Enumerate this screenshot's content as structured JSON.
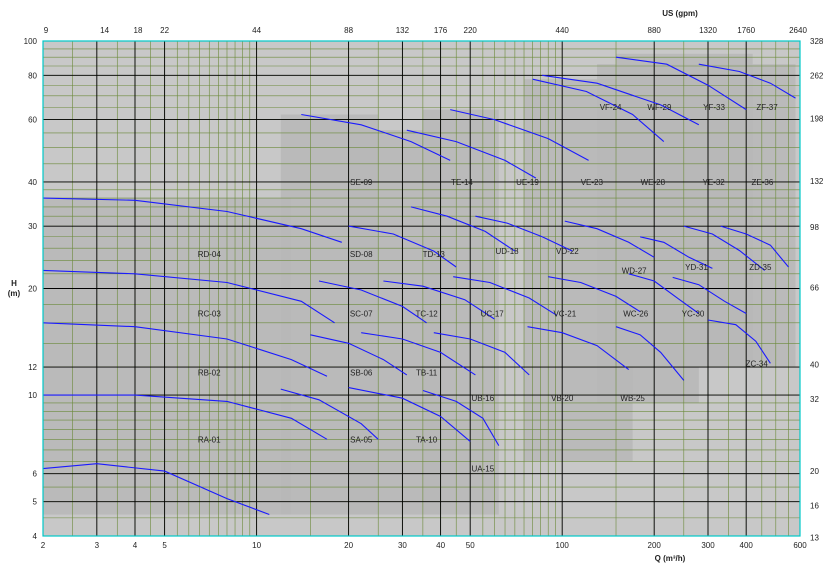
{
  "chart_data": {
    "type": "area",
    "title": "",
    "xlabel": "Q (m³/h)",
    "ylabel": "H\n(m)",
    "top_label": "US (gpm)",
    "x_scale": "log",
    "y_scale": "log",
    "xlim": [
      2,
      600
    ],
    "ylim": [
      4,
      100
    ],
    "x_ticks": [
      "2",
      "3",
      "4",
      "5",
      "10",
      "20",
      "30",
      "40",
      "50",
      "100",
      "200",
      "300",
      "400",
      "600"
    ],
    "y_ticks": [
      "4",
      "5",
      "6",
      "10",
      "12",
      "20",
      "30",
      "40",
      "60",
      "80",
      "100"
    ],
    "top_ticks": [
      "9",
      "14",
      "18",
      "22",
      "44",
      "88",
      "132",
      "176",
      "220",
      "440",
      "880",
      "1320",
      "1760",
      "2640"
    ],
    "right_ticks": [
      "13",
      "16",
      "20",
      "32",
      "40",
      "66",
      "98",
      "132",
      "198",
      "262",
      "328"
    ],
    "grid": true,
    "colors": {
      "background": "#c8c8c8",
      "grid_major": "#000000",
      "grid_minor": "#6b8a3a",
      "frame": "#00c8c8",
      "curve": "#1a1aff",
      "region": "#b8b8b8"
    },
    "curves": [
      {
        "name": "RA",
        "x": [
          2,
          3,
          5,
          8,
          11
        ],
        "y": [
          6.2,
          6.4,
          6.1,
          5.1,
          4.6
        ]
      },
      {
        "name": "RB",
        "x": [
          2,
          4,
          8,
          13,
          17
        ],
        "y": [
          10,
          10,
          9.6,
          8.6,
          7.5
        ]
      },
      {
        "name": "RC",
        "x": [
          2,
          4,
          8,
          13,
          17
        ],
        "y": [
          16,
          15.6,
          14.4,
          12.6,
          11.3
        ]
      },
      {
        "name": "RD",
        "x": [
          2,
          4,
          8,
          14,
          18
        ],
        "y": [
          22.5,
          22,
          20.8,
          18.4,
          16
        ]
      },
      {
        "name": "RE",
        "x": [
          2,
          4,
          8,
          14,
          19
        ],
        "y": [
          36,
          35.5,
          33,
          29.5,
          27
        ]
      },
      {
        "name": "SA",
        "x": [
          12,
          16,
          22,
          25
        ],
        "y": [
          10.4,
          9.7,
          8.3,
          7.5
        ]
      },
      {
        "name": "SB",
        "x": [
          15,
          20,
          26,
          31
        ],
        "y": [
          14.8,
          14,
          12.6,
          11.4
        ]
      },
      {
        "name": "SC",
        "x": [
          16,
          22,
          30,
          36
        ],
        "y": [
          21,
          19.8,
          17.8,
          16
        ]
      },
      {
        "name": "SD",
        "x": [
          20,
          28,
          38,
          45
        ],
        "y": [
          30,
          28.5,
          25.5,
          23
        ]
      },
      {
        "name": "SE",
        "x": [
          14,
          22,
          32,
          43
        ],
        "y": [
          62,
          58,
          52,
          46
        ]
      },
      {
        "name": "TA",
        "x": [
          20,
          30,
          40,
          50
        ],
        "y": [
          10.5,
          9.8,
          8.7,
          7.4
        ]
      },
      {
        "name": "TB",
        "x": [
          22,
          30,
          40,
          52
        ],
        "y": [
          15,
          14.4,
          13.2,
          11.4
        ]
      },
      {
        "name": "TC",
        "x": [
          26,
          35,
          48,
          60
        ],
        "y": [
          21,
          20.3,
          18.6,
          16.4
        ]
      },
      {
        "name": "TD",
        "x": [
          32,
          42,
          56,
          70
        ],
        "y": [
          34,
          32,
          29,
          25.5
        ]
      },
      {
        "name": "TE",
        "x": [
          31,
          45,
          65,
          82
        ],
        "y": [
          56,
          52,
          46,
          41
        ]
      },
      {
        "name": "UA",
        "x": [
          35,
          45,
          55,
          62
        ],
        "y": [
          10.3,
          9.6,
          8.6,
          7.2
        ]
      },
      {
        "name": "UB",
        "x": [
          38,
          50,
          65,
          78
        ],
        "y": [
          15,
          14.4,
          13.2,
          11.4
        ]
      },
      {
        "name": "UC",
        "x": [
          44,
          58,
          78,
          96
        ],
        "y": [
          21.6,
          20.8,
          18.8,
          16.8
        ]
      },
      {
        "name": "UD",
        "x": [
          52,
          66,
          86,
          108
        ],
        "y": [
          32,
          30.6,
          28,
          25.5
        ]
      },
      {
        "name": "UE",
        "x": [
          43,
          60,
          90,
          122
        ],
        "y": [
          64,
          60,
          53,
          46
        ]
      },
      {
        "name": "VB",
        "x": [
          77,
          100,
          130,
          165
        ],
        "y": [
          15.6,
          15,
          13.8,
          11.8
        ]
      },
      {
        "name": "VC",
        "x": [
          90,
          115,
          150,
          180
        ],
        "y": [
          21.6,
          20.8,
          19,
          17.2
        ]
      },
      {
        "name": "VD",
        "x": [
          102,
          130,
          165,
          200
        ],
        "y": [
          31,
          29.5,
          27,
          24.5
        ]
      },
      {
        "name": "VE",
        "x": [
          80,
          120,
          170,
          215
        ],
        "y": [
          78,
          72,
          62,
          52
        ]
      },
      {
        "name": "WB",
        "x": [
          150,
          180,
          210,
          250
        ],
        "y": [
          15.6,
          14.8,
          13.2,
          11
        ]
      },
      {
        "name": "WC",
        "x": [
          165,
          200,
          240,
          280
        ],
        "y": [
          22,
          21,
          18.7,
          17
        ]
      },
      {
        "name": "WD",
        "x": [
          180,
          215,
          260,
          310
        ],
        "y": [
          28,
          27,
          24.5,
          22.8
        ]
      },
      {
        "name": "WE",
        "x": [
          86,
          130,
          210,
          280
        ],
        "y": [
          80,
          76,
          66,
          58
        ]
      },
      {
        "name": "YC",
        "x": [
          230,
          280,
          340,
          400
        ],
        "y": [
          21.5,
          20.5,
          18.4,
          17
        ]
      },
      {
        "name": "YD",
        "x": [
          250,
          310,
          380,
          460
        ],
        "y": [
          30,
          28.5,
          25.6,
          22.5
        ]
      },
      {
        "name": "YE",
        "x": [
          150,
          220,
          300,
          400
        ],
        "y": [
          90,
          86,
          75,
          64
        ]
      },
      {
        "name": "ZC",
        "x": [
          300,
          370,
          430,
          480
        ],
        "y": [
          16.3,
          15.8,
          14.2,
          12.3
        ]
      },
      {
        "name": "ZD",
        "x": [
          330,
          400,
          480,
          550
        ],
        "y": [
          30,
          28.5,
          26.5,
          23
        ]
      },
      {
        "name": "ZE",
        "x": [
          280,
          380,
          480,
          580
        ],
        "y": [
          86,
          82,
          76,
          69
        ]
      }
    ],
    "zones": [
      {
        "label": "RA-01",
        "x": 7,
        "y": 7.5
      },
      {
        "label": "RB-02",
        "x": 7,
        "y": 11.6
      },
      {
        "label": "RC-03",
        "x": 7,
        "y": 17
      },
      {
        "label": "RD-04",
        "x": 7,
        "y": 25
      },
      {
        "label": "SA-05",
        "x": 22,
        "y": 7.5
      },
      {
        "label": "SB-06",
        "x": 22,
        "y": 11.6
      },
      {
        "label": "SC-07",
        "x": 22,
        "y": 17
      },
      {
        "label": "SD-08",
        "x": 22,
        "y": 25
      },
      {
        "label": "SE-09",
        "x": 22,
        "y": 40
      },
      {
        "label": "TA-10",
        "x": 36,
        "y": 7.5
      },
      {
        "label": "TB-11",
        "x": 36,
        "y": 11.6
      },
      {
        "label": "TC-12",
        "x": 36,
        "y": 17
      },
      {
        "label": "TD-13",
        "x": 38,
        "y": 25
      },
      {
        "label": "TE-14",
        "x": 47,
        "y": 40
      },
      {
        "label": "UA-15",
        "x": 55,
        "y": 6.2
      },
      {
        "label": "UB-16",
        "x": 55,
        "y": 9.8
      },
      {
        "label": "UC-17",
        "x": 59,
        "y": 17
      },
      {
        "label": "UD-18",
        "x": 66,
        "y": 25.5
      },
      {
        "label": "UE-19",
        "x": 77,
        "y": 40
      },
      {
        "label": "VB-20",
        "x": 100,
        "y": 9.8
      },
      {
        "label": "VC-21",
        "x": 102,
        "y": 17
      },
      {
        "label": "VD-22",
        "x": 104,
        "y": 25.5
      },
      {
        "label": "VE-23",
        "x": 125,
        "y": 40
      },
      {
        "label": "VF-24",
        "x": 144,
        "y": 65
      },
      {
        "label": "WB-25",
        "x": 170,
        "y": 9.8
      },
      {
        "label": "WC-26",
        "x": 174,
        "y": 17
      },
      {
        "label": "WD-27",
        "x": 172,
        "y": 22.5
      },
      {
        "label": "WE-28",
        "x": 198,
        "y": 40
      },
      {
        "label": "WF-29",
        "x": 208,
        "y": 65
      },
      {
        "label": "YC-30",
        "x": 268,
        "y": 17
      },
      {
        "label": "YD-31",
        "x": 275,
        "y": 23
      },
      {
        "label": "YE-32",
        "x": 313,
        "y": 40
      },
      {
        "label": "YF-33",
        "x": 314,
        "y": 65
      },
      {
        "label": "ZC-34",
        "x": 433,
        "y": 12.3
      },
      {
        "label": "ZD-35",
        "x": 445,
        "y": 23
      },
      {
        "label": "ZE-36",
        "x": 452,
        "y": 40
      },
      {
        "label": "ZF-37",
        "x": 468,
        "y": 65
      }
    ]
  }
}
